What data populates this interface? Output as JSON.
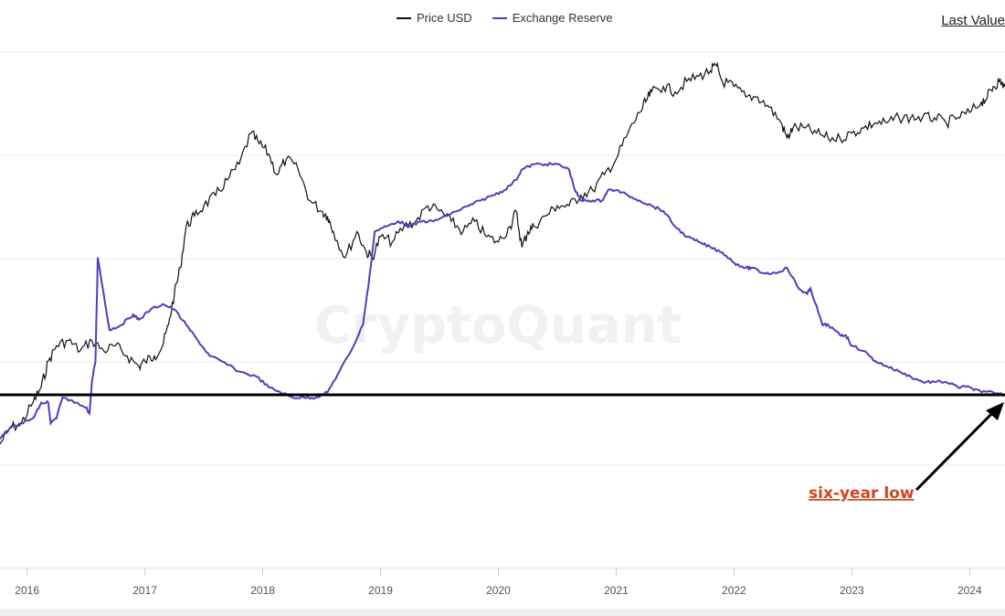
{
  "legend": {
    "price_label": "Price USD",
    "reserve_label": "Exchange Reserve",
    "price_color": "#111111",
    "reserve_color": "#4b3fbf"
  },
  "header": {
    "last_value_label": "Last Value"
  },
  "watermark": "CryptoQuant",
  "annotation": {
    "text": "six-year low",
    "color": "#d0461f"
  },
  "chart_data": {
    "type": "line",
    "title": "",
    "xlabel": "",
    "ylabel": "",
    "x_ticks": [
      "2016",
      "2017",
      "2018",
      "2019",
      "2020",
      "2021",
      "2022",
      "2023",
      "2024"
    ],
    "x_range": [
      2015.77,
      2024.3
    ],
    "ylim": [
      0,
      100
    ],
    "y_scale_note": "relative 0-100 scale, no y-axis values shown",
    "grid": true,
    "legend_position": "top-center",
    "reference_line": {
      "name": "six-year low level",
      "y": 33.5
    },
    "series": [
      {
        "name": "Price USD",
        "color": "#111111",
        "x": [
          2015.77,
          2015.85,
          2015.95,
          2016.05,
          2016.12,
          2016.18,
          2016.25,
          2016.35,
          2016.45,
          2016.55,
          2016.65,
          2016.75,
          2016.85,
          2016.95,
          2017.0,
          2017.08,
          2017.15,
          2017.2,
          2017.25,
          2017.3,
          2017.35,
          2017.42,
          2017.5,
          2017.6,
          2017.7,
          2017.8,
          2017.9,
          2017.97,
          2018.05,
          2018.12,
          2018.2,
          2018.3,
          2018.4,
          2018.5,
          2018.55,
          2018.6,
          2018.7,
          2018.8,
          2018.88,
          2018.93,
          2019.0,
          2019.1,
          2019.2,
          2019.3,
          2019.4,
          2019.5,
          2019.6,
          2019.7,
          2019.8,
          2019.9,
          2020.0,
          2020.1,
          2020.15,
          2020.2,
          2020.25,
          2020.3,
          2020.4,
          2020.5,
          2020.6,
          2020.7,
          2020.8,
          2020.9,
          2021.0,
          2021.1,
          2021.2,
          2021.25,
          2021.3,
          2021.4,
          2021.5,
          2021.6,
          2021.7,
          2021.8,
          2021.85,
          2021.9,
          2022.0,
          2022.1,
          2022.2,
          2022.3,
          2022.4,
          2022.45,
          2022.5,
          2022.6,
          2022.7,
          2022.8,
          2022.9,
          2023.0,
          2023.1,
          2023.2,
          2023.3,
          2023.4,
          2023.5,
          2023.6,
          2023.7,
          2023.8,
          2023.9,
          2024.0,
          2024.1,
          2024.15,
          2024.2,
          2024.25,
          2024.3
        ],
        "y": [
          24,
          27,
          28,
          32,
          35,
          40,
          43,
          44,
          42,
          44,
          42,
          43,
          41,
          39,
          40,
          41,
          43,
          47,
          53,
          58,
          66,
          68,
          70,
          72,
          75,
          78,
          84,
          82,
          80,
          76,
          79,
          77,
          71,
          69,
          68,
          65,
          60,
          65,
          61,
          60,
          64,
          63,
          66,
          67,
          70,
          69,
          67,
          65,
          67,
          64,
          63,
          66,
          69,
          62,
          65,
          66,
          68,
          70,
          70,
          72,
          73,
          76,
          79,
          84,
          88,
          90,
          92,
          93,
          92,
          94,
          95,
          96,
          97,
          94,
          93,
          91,
          91,
          89,
          86,
          83,
          85,
          85,
          84,
          83,
          83,
          84,
          85,
          86,
          86,
          87,
          87,
          87,
          87,
          86,
          87,
          88,
          90,
          91,
          93,
          94,
          93
        ]
      },
      {
        "name": "Exchange Reserve",
        "color": "#4b3fbf",
        "x": [
          2015.77,
          2015.85,
          2015.95,
          2016.05,
          2016.12,
          2016.18,
          2016.2,
          2016.25,
          2016.3,
          2016.4,
          2016.5,
          2016.53,
          2016.55,
          2016.58,
          2016.6,
          2016.7,
          2016.8,
          2016.9,
          2016.95,
          2017.05,
          2017.15,
          2017.25,
          2017.35,
          2017.45,
          2017.55,
          2017.65,
          2017.8,
          2017.95,
          2018.05,
          2018.15,
          2018.25,
          2018.35,
          2018.45,
          2018.55,
          2018.65,
          2018.75,
          2018.85,
          2018.88,
          2018.9,
          2018.95,
          2019.05,
          2019.15,
          2019.25,
          2019.35,
          2019.45,
          2019.55,
          2019.65,
          2019.75,
          2019.85,
          2019.95,
          2020.05,
          2020.15,
          2020.2,
          2020.3,
          2020.4,
          2020.5,
          2020.6,
          2020.65,
          2020.7,
          2020.8,
          2020.88,
          2020.93,
          2021.0,
          2021.1,
          2021.2,
          2021.3,
          2021.4,
          2021.5,
          2021.6,
          2021.7,
          2021.8,
          2021.9,
          2022.0,
          2022.1,
          2022.15,
          2022.25,
          2022.35,
          2022.45,
          2022.55,
          2022.62,
          2022.65,
          2022.75,
          2022.8,
          2022.9,
          2022.95,
          2023.0,
          2023.1,
          2023.2,
          2023.3,
          2023.4,
          2023.5,
          2023.6,
          2023.7,
          2023.8,
          2023.9,
          2024.0,
          2024.1,
          2024.2,
          2024.3
        ],
        "y": [
          25,
          27,
          28,
          29,
          32,
          32,
          28,
          29,
          33,
          32,
          31,
          30,
          36,
          40,
          60,
          46,
          47,
          49,
          48,
          50,
          51,
          50,
          47,
          44,
          41,
          40,
          38,
          37,
          35,
          34,
          33,
          33,
          33,
          34,
          38,
          42,
          47,
          52,
          55,
          65,
          66,
          67,
          66,
          67,
          67,
          68,
          69,
          70,
          71,
          72,
          73,
          75,
          77,
          78,
          78,
          78,
          77,
          73,
          71,
          71,
          71,
          73,
          73,
          72,
          71,
          70,
          69,
          66,
          64,
          63,
          62,
          61,
          59,
          58,
          58,
          57,
          57,
          58,
          54,
          53,
          54,
          47,
          47,
          45,
          45,
          43,
          42,
          40,
          39,
          38,
          37,
          36,
          36,
          36,
          35,
          35,
          34,
          34,
          33.5
        ]
      }
    ]
  }
}
